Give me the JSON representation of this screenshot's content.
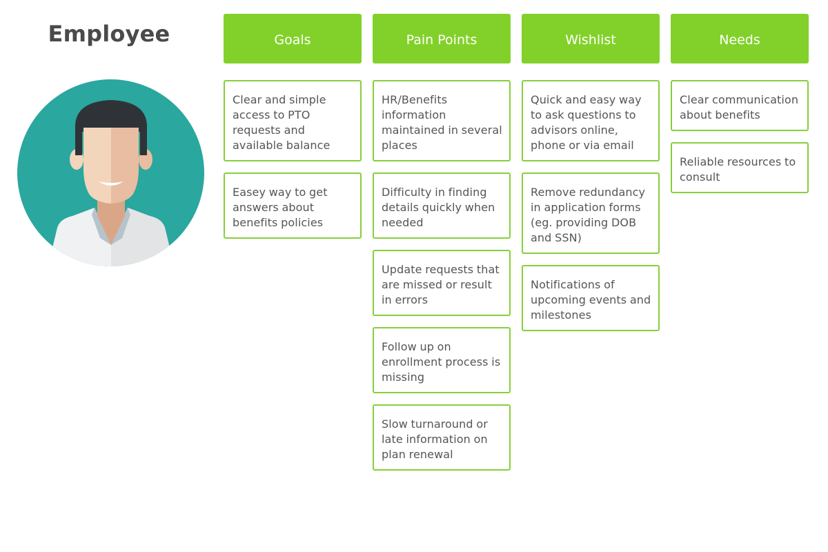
{
  "persona": {
    "title": "Employee",
    "avatar_icon": "employee-avatar-icon",
    "colors": {
      "circle": "#2aa79f",
      "hair": "#2f3338",
      "skin_light": "#f2d5bb",
      "skin_shade": "#e8bda2",
      "neck": "#d9a788",
      "shirt": "#f0f1f2",
      "collar": "#b7c3cc"
    }
  },
  "accent_color": "#82d12a",
  "columns": [
    {
      "title": "Goals",
      "cards": [
        "Clear and simple access to PTO requests and available balance",
        "Easey way to get answers about benefits policies"
      ]
    },
    {
      "title": "Pain Points",
      "cards": [
        "HR/Benefits information maintained in several places",
        "Difficulty in finding details quickly when needed",
        "Update requests that are missed or result in errors",
        "Follow up on enrollment process is missing",
        "Slow turnaround or late information on plan renewal"
      ]
    },
    {
      "title": "Wishlist",
      "cards": [
        "Quick and easy way to ask questions to advisors online, phone or via email",
        "Remove redundancy in application forms (eg. providing DOB and SSN)",
        "Notifications of upcoming events and milestones"
      ]
    },
    {
      "title": "Needs",
      "cards": [
        "Clear communication about benefits",
        "Reliable resources to consult"
      ]
    }
  ]
}
